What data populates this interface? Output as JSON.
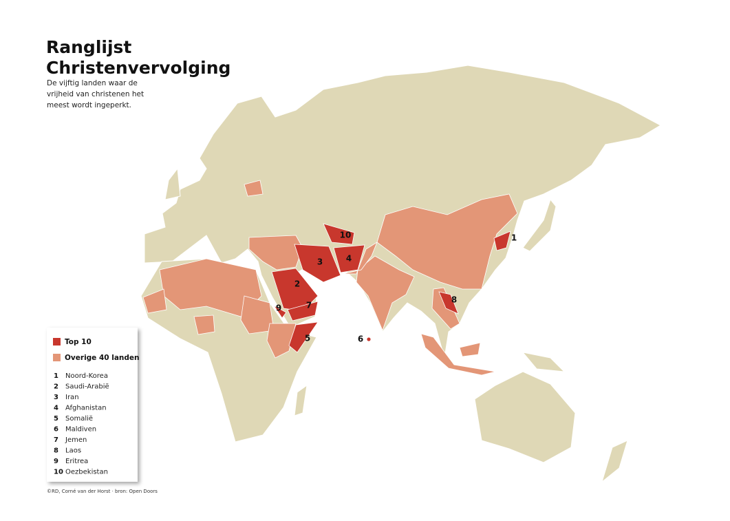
{
  "header": {
    "title_lines": [
      "Ranglijst",
      "Christenvervolging"
    ],
    "subtitle_lines": [
      "De vijftig landen waar de",
      "vrijheid van christenen het",
      "meest wordt ingeperkt."
    ]
  },
  "legend": {
    "items": [
      {
        "label": "Top 10",
        "color": "#c8372d"
      },
      {
        "label": "Overige 40 landen",
        "color": "#e39677"
      }
    ],
    "ranking": [
      {
        "rank": "1",
        "name": "Noord-Korea"
      },
      {
        "rank": "2",
        "name": "Saudi-Arabië"
      },
      {
        "rank": "3",
        "name": "Iran"
      },
      {
        "rank": "4",
        "name": "Afghanistan"
      },
      {
        "rank": "5",
        "name": "Somalië"
      },
      {
        "rank": "6",
        "name": "Maldiven"
      },
      {
        "rank": "7",
        "name": "Jemen"
      },
      {
        "rank": "8",
        "name": "Laos"
      },
      {
        "rank": "9",
        "name": "Eritrea"
      },
      {
        "rank": "10",
        "name": "Oezbekistan"
      }
    ]
  },
  "credit": "©RD, Corné van der Horst · bron: Open Doors"
}
